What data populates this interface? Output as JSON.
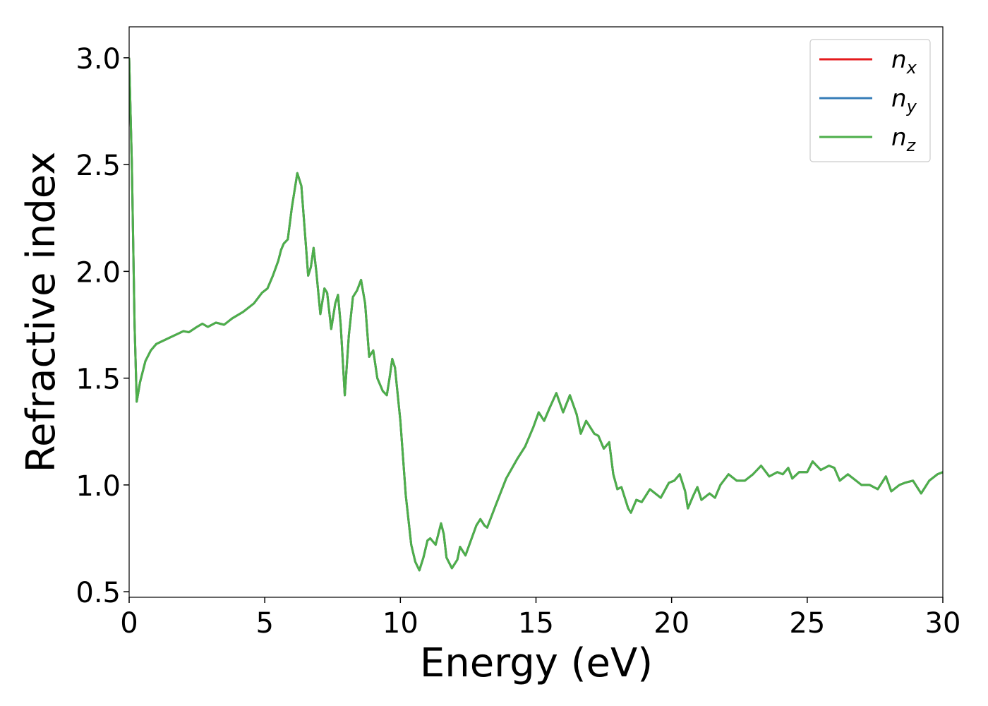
{
  "chart_data": {
    "type": "line",
    "xlabel": "Energy (eV)",
    "ylabel": "Refractive index",
    "xlim": [
      0,
      30
    ],
    "ylim": [
      0.474,
      3.145
    ],
    "xticks": [
      0,
      5,
      10,
      15,
      20,
      25,
      30
    ],
    "yticks": [
      0.5,
      {
        "value": 1,
        "label": "1.0"
      },
      1.5,
      {
        "value": 2,
        "label": "2.0"
      },
      2.5,
      {
        "value": 3,
        "label": "3.0"
      }
    ],
    "legend": "upper right",
    "x": [
      0,
      0.1,
      0.2,
      0.28,
      0.4,
      0.6,
      0.8,
      1.0,
      1.5,
      2.0,
      2.2,
      2.5,
      2.7,
      2.9,
      3.2,
      3.5,
      3.8,
      4.2,
      4.6,
      4.9,
      5.1,
      5.3,
      5.5,
      5.6,
      5.7,
      5.85,
      6.0,
      6.2,
      6.35,
      6.5,
      6.6,
      6.7,
      6.8,
      6.9,
      7.05,
      7.2,
      7.3,
      7.45,
      7.6,
      7.7,
      7.8,
      7.95,
      8.1,
      8.25,
      8.4,
      8.55,
      8.7,
      8.85,
      9.0,
      9.15,
      9.35,
      9.5,
      9.6,
      9.7,
      9.8,
      10.0,
      10.2,
      10.4,
      10.55,
      10.7,
      10.85,
      11.0,
      11.1,
      11.3,
      11.5,
      11.6,
      11.7,
      11.9,
      12.1,
      12.2,
      12.4,
      12.6,
      12.8,
      12.95,
      13.1,
      13.2,
      13.5,
      13.9,
      14.3,
      14.6,
      14.9,
      15.1,
      15.3,
      15.5,
      15.75,
      16.0,
      16.25,
      16.5,
      16.65,
      16.85,
      17.0,
      17.15,
      17.3,
      17.5,
      17.7,
      17.85,
      18.0,
      18.15,
      18.4,
      18.5,
      18.7,
      18.9,
      19.2,
      19.6,
      19.9,
      20.1,
      20.3,
      20.5,
      20.6,
      20.8,
      20.95,
      21.1,
      21.4,
      21.6,
      21.8,
      22.1,
      22.4,
      22.7,
      23.0,
      23.3,
      23.6,
      23.9,
      24.1,
      24.3,
      24.45,
      24.7,
      25.0,
      25.2,
      25.5,
      25.8,
      26.0,
      26.2,
      26.5,
      26.8,
      27.0,
      27.3,
      27.6,
      27.9,
      28.1,
      28.4,
      28.6,
      28.9,
      29.2,
      29.5,
      29.8,
      30.0
    ],
    "series": [
      {
        "name": "nx",
        "color": "#e41a1c",
        "values": [
          3.0,
          2.5,
          1.75,
          1.39,
          1.48,
          1.58,
          1.63,
          1.66,
          1.69,
          1.72,
          1.715,
          1.74,
          1.755,
          1.74,
          1.76,
          1.75,
          1.78,
          1.81,
          1.85,
          1.9,
          1.92,
          1.98,
          2.05,
          2.1,
          2.13,
          2.15,
          2.3,
          2.46,
          2.4,
          2.15,
          1.98,
          2.02,
          2.11,
          2.0,
          1.8,
          1.92,
          1.9,
          1.73,
          1.85,
          1.89,
          1.75,
          1.42,
          1.7,
          1.88,
          1.91,
          1.96,
          1.85,
          1.6,
          1.63,
          1.5,
          1.44,
          1.42,
          1.5,
          1.59,
          1.55,
          1.3,
          0.95,
          0.72,
          0.64,
          0.6,
          0.66,
          0.74,
          0.75,
          0.72,
          0.82,
          0.77,
          0.66,
          0.61,
          0.65,
          0.71,
          0.67,
          0.74,
          0.81,
          0.84,
          0.81,
          0.8,
          0.9,
          1.03,
          1.12,
          1.18,
          1.27,
          1.34,
          1.3,
          1.36,
          1.43,
          1.34,
          1.42,
          1.33,
          1.24,
          1.3,
          1.27,
          1.24,
          1.23,
          1.17,
          1.2,
          1.05,
          0.98,
          0.99,
          0.89,
          0.87,
          0.93,
          0.92,
          0.98,
          0.94,
          1.01,
          1.02,
          1.05,
          0.97,
          0.89,
          0.95,
          0.99,
          0.93,
          0.96,
          0.94,
          1.0,
          1.05,
          1.02,
          1.02,
          1.05,
          1.09,
          1.04,
          1.06,
          1.05,
          1.08,
          1.03,
          1.06,
          1.06,
          1.11,
          1.07,
          1.09,
          1.08,
          1.02,
          1.05,
          1.02,
          1.0,
          1.0,
          0.98,
          1.04,
          0.97,
          1.0,
          1.01,
          1.02,
          0.96,
          1.02,
          1.05,
          1.06
        ]
      },
      {
        "name": "ny",
        "color": "#377eb8",
        "values": [
          3.0,
          2.5,
          1.75,
          1.39,
          1.48,
          1.58,
          1.63,
          1.66,
          1.69,
          1.72,
          1.715,
          1.74,
          1.755,
          1.74,
          1.76,
          1.75,
          1.78,
          1.81,
          1.85,
          1.9,
          1.92,
          1.98,
          2.05,
          2.1,
          2.13,
          2.15,
          2.3,
          2.46,
          2.4,
          2.15,
          1.98,
          2.02,
          2.11,
          2.0,
          1.8,
          1.92,
          1.9,
          1.73,
          1.85,
          1.89,
          1.75,
          1.42,
          1.7,
          1.88,
          1.91,
          1.96,
          1.85,
          1.6,
          1.63,
          1.5,
          1.44,
          1.42,
          1.5,
          1.59,
          1.55,
          1.3,
          0.95,
          0.72,
          0.64,
          0.6,
          0.66,
          0.74,
          0.75,
          0.72,
          0.82,
          0.77,
          0.66,
          0.61,
          0.65,
          0.71,
          0.67,
          0.74,
          0.81,
          0.84,
          0.81,
          0.8,
          0.9,
          1.03,
          1.12,
          1.18,
          1.27,
          1.34,
          1.3,
          1.36,
          1.43,
          1.34,
          1.42,
          1.33,
          1.24,
          1.3,
          1.27,
          1.24,
          1.23,
          1.17,
          1.2,
          1.05,
          0.98,
          0.99,
          0.89,
          0.87,
          0.93,
          0.92,
          0.98,
          0.94,
          1.01,
          1.02,
          1.05,
          0.97,
          0.89,
          0.95,
          0.99,
          0.93,
          0.96,
          0.94,
          1.0,
          1.05,
          1.02,
          1.02,
          1.05,
          1.09,
          1.04,
          1.06,
          1.05,
          1.08,
          1.03,
          1.06,
          1.06,
          1.11,
          1.07,
          1.09,
          1.08,
          1.02,
          1.05,
          1.02,
          1.0,
          1.0,
          0.98,
          1.04,
          0.97,
          1.0,
          1.01,
          1.02,
          0.96,
          1.02,
          1.05,
          1.06
        ]
      },
      {
        "name": "nz",
        "color": "#4daf4a",
        "values": [
          3.0,
          2.5,
          1.75,
          1.39,
          1.48,
          1.58,
          1.63,
          1.66,
          1.69,
          1.72,
          1.715,
          1.74,
          1.755,
          1.74,
          1.76,
          1.75,
          1.78,
          1.81,
          1.85,
          1.9,
          1.92,
          1.98,
          2.05,
          2.1,
          2.13,
          2.15,
          2.3,
          2.46,
          2.4,
          2.15,
          1.98,
          2.02,
          2.11,
          2.0,
          1.8,
          1.92,
          1.9,
          1.73,
          1.85,
          1.89,
          1.75,
          1.42,
          1.7,
          1.88,
          1.91,
          1.96,
          1.85,
          1.6,
          1.63,
          1.5,
          1.44,
          1.42,
          1.5,
          1.59,
          1.55,
          1.3,
          0.95,
          0.72,
          0.64,
          0.6,
          0.66,
          0.74,
          0.75,
          0.72,
          0.82,
          0.77,
          0.66,
          0.61,
          0.65,
          0.71,
          0.67,
          0.74,
          0.81,
          0.84,
          0.81,
          0.8,
          0.9,
          1.03,
          1.12,
          1.18,
          1.27,
          1.34,
          1.3,
          1.36,
          1.43,
          1.34,
          1.42,
          1.33,
          1.24,
          1.3,
          1.27,
          1.24,
          1.23,
          1.17,
          1.2,
          1.05,
          0.98,
          0.99,
          0.89,
          0.87,
          0.93,
          0.92,
          0.98,
          0.94,
          1.01,
          1.02,
          1.05,
          0.97,
          0.89,
          0.95,
          0.99,
          0.93,
          0.96,
          0.94,
          1.0,
          1.05,
          1.02,
          1.02,
          1.05,
          1.09,
          1.04,
          1.06,
          1.05,
          1.08,
          1.03,
          1.06,
          1.06,
          1.11,
          1.07,
          1.09,
          1.08,
          1.02,
          1.05,
          1.02,
          1.0,
          1.0,
          0.98,
          1.04,
          0.97,
          1.0,
          1.01,
          1.02,
          0.96,
          1.02,
          1.05,
          1.06
        ]
      }
    ]
  }
}
